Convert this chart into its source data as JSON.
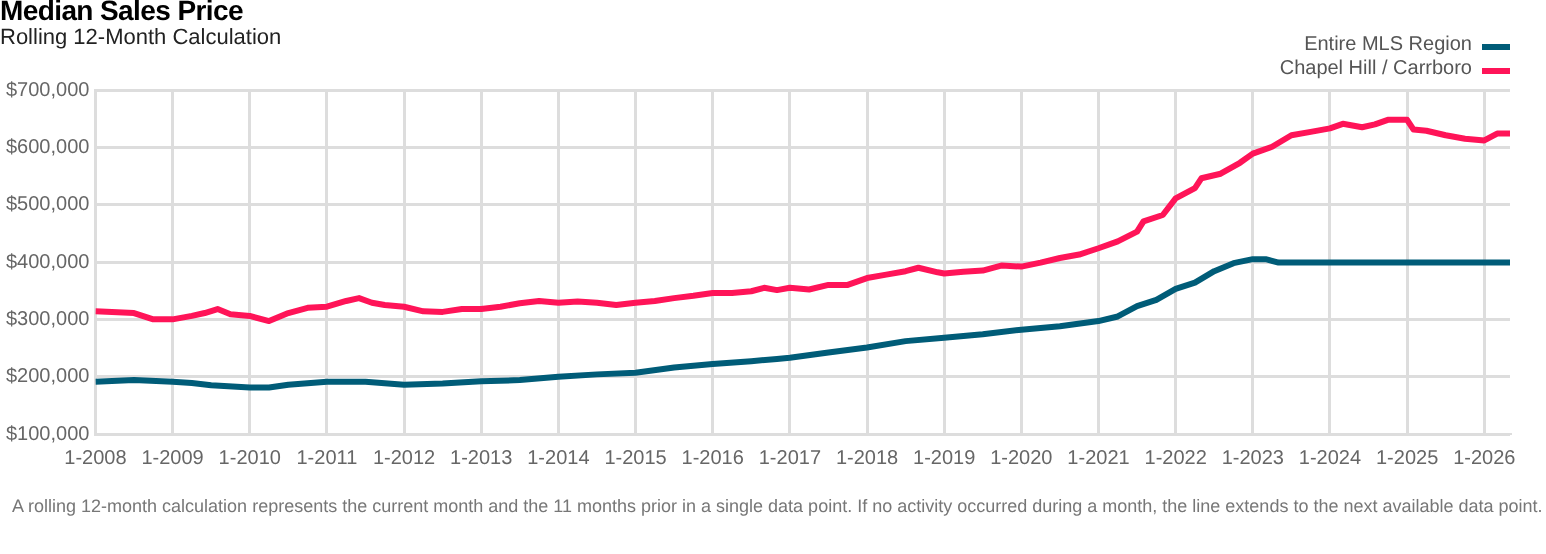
{
  "chart_data": {
    "type": "line",
    "title": "Median Sales Price",
    "subtitle": "Rolling 12-Month Calculation",
    "annotations": [
      "A rolling 12-month calculation represents the current month and the 11 months prior in a single data point. If no activity occurred during a month, the line extends to the next available data point."
    ],
    "legend": "top right",
    "grid": true,
    "marker": "none",
    "line_style": "solid",
    "xlim": [
      "2008-01",
      "2026-05"
    ],
    "xticks": [
      {
        "value": "2008-01",
        "label": "1-2008"
      },
      {
        "value": "2009-01",
        "label": "1-2009"
      },
      {
        "value": "2010-01",
        "label": "1-2010"
      },
      {
        "value": "2011-01",
        "label": "1-2011"
      },
      {
        "value": "2012-01",
        "label": "1-2012"
      },
      {
        "value": "2013-01",
        "label": "1-2013"
      },
      {
        "value": "2014-01",
        "label": "1-2014"
      },
      {
        "value": "2015-01",
        "label": "1-2015"
      },
      {
        "value": "2016-01",
        "label": "1-2016"
      },
      {
        "value": "2017-01",
        "label": "1-2017"
      },
      {
        "value": "2018-01",
        "label": "1-2018"
      },
      {
        "value": "2019-01",
        "label": "1-2019"
      },
      {
        "value": "2020-01",
        "label": "1-2020"
      },
      {
        "value": "2021-01",
        "label": "1-2021"
      },
      {
        "value": "2022-01",
        "label": "1-2022"
      },
      {
        "value": "2023-01",
        "label": "1-2023"
      },
      {
        "value": "2024-01",
        "label": "1-2024"
      },
      {
        "value": "2025-01",
        "label": "1-2025"
      },
      {
        "value": "2026-01",
        "label": "1-2026"
      }
    ],
    "ylim": [
      100000,
      700000
    ],
    "yticks": [
      {
        "value": 100000,
        "label": "$100,000"
      },
      {
        "value": 200000,
        "label": "$200,000"
      },
      {
        "value": 300000,
        "label": "$300,000"
      },
      {
        "value": 400000,
        "label": "$400,000"
      },
      {
        "value": 500000,
        "label": "$500,000"
      },
      {
        "value": 600000,
        "label": "$600,000"
      },
      {
        "value": 700000,
        "label": "$700,000"
      }
    ],
    "series": [
      {
        "name": "Entire MLS Region",
        "color": "#005c78",
        "x": [
          "2008-01",
          "2008-07",
          "2009-01",
          "2009-04",
          "2009-07",
          "2010-01",
          "2010-04",
          "2010-07",
          "2011-01",
          "2011-07",
          "2012-01",
          "2012-07",
          "2013-01",
          "2013-07",
          "2014-01",
          "2014-07",
          "2015-01",
          "2015-07",
          "2016-01",
          "2016-07",
          "2016-11",
          "2017-01",
          "2017-07",
          "2018-01",
          "2018-07",
          "2019-01",
          "2019-07",
          "2020-01",
          "2020-07",
          "2021-01",
          "2021-04",
          "2021-07",
          "2021-10",
          "2022-01",
          "2022-04",
          "2022-07",
          "2022-10",
          "2023-01",
          "2023-03",
          "2023-05",
          "2024-01",
          "2025-01",
          "2026-01",
          "2026-05"
        ],
        "values": [
          191000,
          194000,
          191000,
          189000,
          185000,
          181000,
          181000,
          186000,
          191000,
          191000,
          186000,
          188000,
          192000,
          194000,
          200000,
          204000,
          207000,
          216000,
          222000,
          227000,
          231000,
          233000,
          242000,
          251000,
          262000,
          268000,
          274000,
          282000,
          288000,
          297000,
          305000,
          323000,
          334000,
          353000,
          364000,
          384000,
          398000,
          405000,
          405000,
          399000,
          399000,
          399000,
          399000,
          399000
        ]
      },
      {
        "name": "Chapel Hill / Carrboro",
        "color": "#ff1458",
        "x": [
          "2008-01",
          "2008-07",
          "2008-10",
          "2009-01",
          "2009-04",
          "2009-06",
          "2009-08",
          "2009-10",
          "2010-01",
          "2010-04",
          "2010-07",
          "2010-10",
          "2011-01",
          "2011-04",
          "2011-06",
          "2011-08",
          "2011-10",
          "2012-01",
          "2012-04",
          "2012-07",
          "2012-10",
          "2013-01",
          "2013-04",
          "2013-07",
          "2013-10",
          "2014-01",
          "2014-04",
          "2014-07",
          "2014-10",
          "2015-01",
          "2015-04",
          "2015-07",
          "2015-10",
          "2016-01",
          "2016-04",
          "2016-07",
          "2016-09",
          "2016-11",
          "2017-01",
          "2017-04",
          "2017-07",
          "2017-10",
          "2018-01",
          "2018-04",
          "2018-07",
          "2018-09",
          "2018-12",
          "2019-01",
          "2019-04",
          "2019-07",
          "2019-10",
          "2020-01",
          "2020-04",
          "2020-07",
          "2020-10",
          "2021-01",
          "2021-04",
          "2021-07",
          "2021-08",
          "2021-11",
          "2022-01",
          "2022-04",
          "2022-05",
          "2022-08",
          "2022-11",
          "2023-01",
          "2023-04",
          "2023-07",
          "2023-10",
          "2024-01",
          "2024-03",
          "2024-06",
          "2024-08",
          "2024-10",
          "2025-01",
          "2025-02",
          "2025-04",
          "2025-07",
          "2025-10",
          "2026-01",
          "2026-03",
          "2026-05"
        ],
        "values": [
          314000,
          311000,
          300000,
          300000,
          306000,
          311000,
          318000,
          309000,
          306000,
          297000,
          311000,
          320000,
          322000,
          332000,
          337000,
          329000,
          325000,
          322000,
          314000,
          313000,
          318000,
          318000,
          322000,
          328000,
          332000,
          329000,
          331000,
          329000,
          325000,
          329000,
          332000,
          337000,
          341000,
          346000,
          346000,
          349000,
          355000,
          351000,
          355000,
          352000,
          360000,
          360000,
          372000,
          378000,
          384000,
          390000,
          382000,
          380000,
          383000,
          385000,
          394000,
          392000,
          399000,
          407000,
          413000,
          424000,
          436000,
          453000,
          471000,
          482000,
          511000,
          529000,
          546000,
          554000,
          573000,
          589000,
          601000,
          621000,
          627000,
          633000,
          641000,
          635000,
          640000,
          648000,
          648000,
          631000,
          629000,
          621000,
          615000,
          612000,
          624000,
          624000
        ]
      }
    ]
  }
}
